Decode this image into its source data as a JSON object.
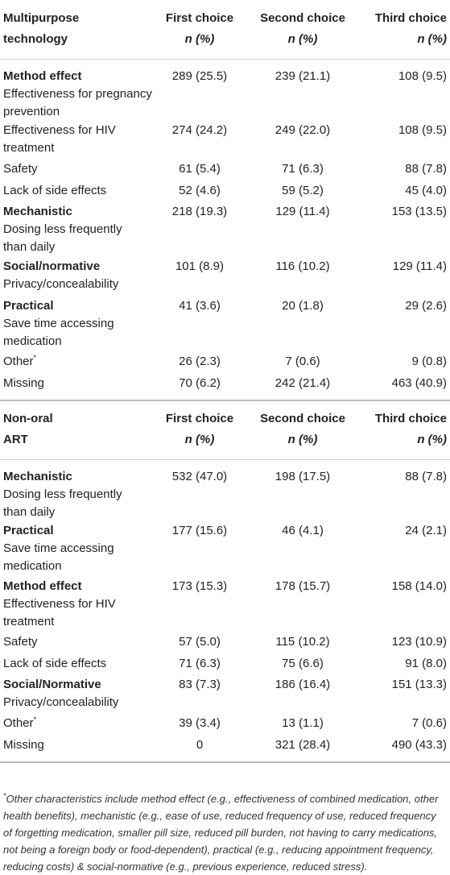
{
  "sections": [
    {
      "header": {
        "title_line1": "Multipurpose",
        "title_line2": "technology",
        "col1": "First choice",
        "col2": "Second choice",
        "col3": "Third choice",
        "sub": "n (%)"
      },
      "rows": [
        {
          "group": "Method effect",
          "label": "Effectiveness for pregnancy prevention",
          "c1": "289 (25.5)",
          "c2": "239 (21.1)",
          "c3": "108 (9.5)"
        },
        {
          "group": "",
          "label": "Effectiveness for HIV treatment",
          "c1": "274 (24.2)",
          "c2": "249 (22.0)",
          "c3": "108 (9.5)"
        },
        {
          "group": "",
          "label": "Safety",
          "c1": "61 (5.4)",
          "c2": "71 (6.3)",
          "c3": "88 (7.8)"
        },
        {
          "group": "",
          "label": "Lack of side effects",
          "c1": "52 (4.6)",
          "c2": "59 (5.2)",
          "c3": "45 (4.0)"
        },
        {
          "group": "Mechanistic",
          "label": "Dosing less frequently than daily",
          "c1": "218 (19.3)",
          "c2": "129 (11.4)",
          "c3": "153 (13.5)"
        },
        {
          "group": "Social/normative",
          "label": "Privacy/concealability",
          "c1": "101 (8.9)",
          "c2": "116 (10.2)",
          "c3": "129 (11.4)"
        },
        {
          "group": "Practical",
          "label": "Save time accessing medication",
          "c1": "41 (3.6)",
          "c2": "20 (1.8)",
          "c3": "29 (2.6)"
        },
        {
          "group": "",
          "label": "Other",
          "c1": "26 (2.3)",
          "c2": "7 (0.6)",
          "c3": "9 (0.8)"
        },
        {
          "group": "",
          "label": "Missing",
          "c1": "70 (6.2)",
          "c2": "242 (21.4)",
          "c3": "463 (40.9)"
        }
      ]
    },
    {
      "header": {
        "title_line1": "Non-oral",
        "title_line2": "ART",
        "col1": "First choice",
        "col2": "Second choice",
        "col3": "Third choice",
        "sub": "n (%)"
      },
      "rows": [
        {
          "group": "Mechanistic",
          "label": "Dosing less frequently than daily",
          "c1": "532 (47.0)",
          "c2": "198 (17.5)",
          "c3": "88 (7.8)"
        },
        {
          "group": "Practical",
          "label": "Save time accessing medication",
          "c1": "177 (15.6)",
          "c2": "46 (4.1)",
          "c3": "24 (2.1)"
        },
        {
          "group": "Method effect",
          "label": "Effectiveness for HIV treatment",
          "c1": "173 (15.3)",
          "c2": "178 (15.7)",
          "c3": "158 (14.0)"
        },
        {
          "group": "",
          "label": "Safety",
          "c1": "57 (5.0)",
          "c2": "115 (10.2)",
          "c3": "123 (10.9)"
        },
        {
          "group": "",
          "label": "Lack of side effects",
          "c1": "71 (6.3)",
          "c2": "75 (6.6)",
          "c3": "91 (8.0)"
        },
        {
          "group": "Social/Normative",
          "label": "Privacy/concealability",
          "c1": "83 (7.3)",
          "c2": "186 (16.4)",
          "c3": "151 (13.3)"
        },
        {
          "group": "",
          "label": "Other",
          "c1": "39 (3.4)",
          "c2": "13 (1.1)",
          "c3": "7 (0.6)"
        },
        {
          "group": "",
          "label": "Missing",
          "c1": "0",
          "c2": "321 (28.4)",
          "c3": "490 (43.3)"
        }
      ]
    }
  ],
  "other_marker": "*",
  "footnote_marker": "*",
  "footnote": "Other characteristics include method effect (e.g., effectiveness of combined medication, other health benefits), mechanistic (e.g., ease of use, reduced frequency of use, reduced frequency of forgetting medication, smaller pill size, reduced pill burden, not having to carry medications, not being a foreign body or food-dependent), practical (e.g., reducing appointment frequency, reducing costs) & social-normative (e.g., previous experience, reduced stress)."
}
